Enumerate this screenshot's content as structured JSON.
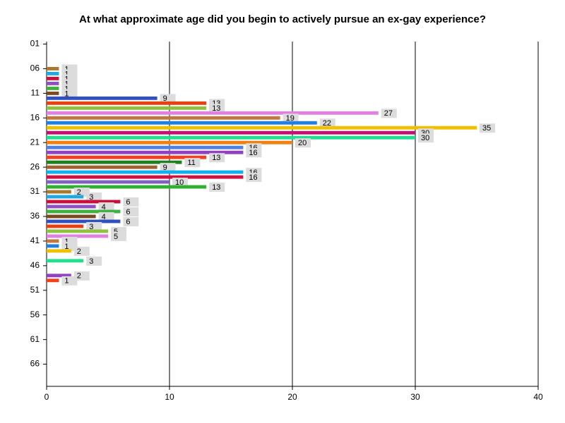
{
  "chart_data": {
    "type": "bar",
    "orientation": "horizontal",
    "title": "At what approximate age did you begin to actively pursue an ex-gay experience?",
    "categories": [
      "01",
      null,
      null,
      null,
      null,
      "06",
      null,
      null,
      null,
      null,
      "11",
      null,
      null,
      null,
      null,
      "16",
      null,
      null,
      null,
      null,
      "21",
      null,
      null,
      null,
      null,
      "26",
      null,
      null,
      null,
      null,
      "31",
      null,
      null,
      null,
      null,
      "36",
      null,
      null,
      null,
      null,
      "41",
      null,
      null,
      null,
      null,
      "46",
      null,
      null,
      null,
      null,
      "51",
      null,
      null,
      null,
      null,
      "56",
      null,
      null,
      null,
      null,
      "61",
      null,
      null,
      null,
      null,
      "66",
      null,
      null,
      null,
      null
    ],
    "values": [
      0,
      0,
      0,
      0,
      0,
      1,
      1,
      1,
      1,
      1,
      1,
      9,
      13,
      13,
      27,
      19,
      22,
      35,
      30,
      30,
      20,
      16,
      16,
      13,
      11,
      9,
      16,
      16,
      10,
      13,
      2,
      3,
      6,
      4,
      6,
      4,
      6,
      3,
      5,
      5,
      1,
      1,
      2,
      0,
      3,
      0,
      0,
      2,
      1,
      0,
      0,
      0,
      0,
      0,
      0,
      0,
      0,
      0,
      0,
      0,
      0,
      0,
      0,
      0,
      0,
      0,
      0,
      0,
      0,
      0
    ],
    "palette": [
      "#a06030",
      "#10b0f0",
      "#d01040",
      "#8060c0",
      "#30b030",
      "#a87830",
      "#20a8e0",
      "#c8103c",
      "#9050c0",
      "#40b040",
      "#7a4a20",
      "#3050c0",
      "#e84010",
      "#90c040",
      "#e080e0",
      "#c07840",
      "#2080e0",
      "#f0c000",
      "#c01070",
      "#20e090",
      "#f08010",
      "#5080e0",
      "#9040c0",
      "#f04020",
      "#208020"
    ],
    "xlim": [
      0,
      40
    ],
    "xticks": [
      0,
      10,
      20,
      30,
      40
    ],
    "grid": true
  }
}
